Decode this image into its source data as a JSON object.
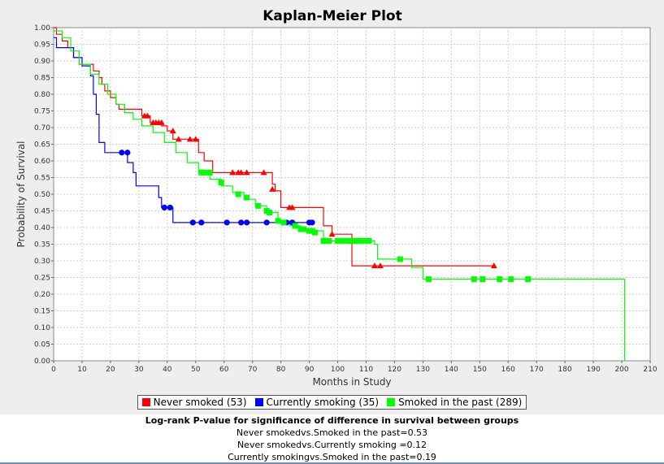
{
  "chart_data": {
    "type": "line",
    "title": "Kaplan-Meier Plot",
    "xlabel": "Months in Study",
    "ylabel": "Probability of Survival",
    "xlim": [
      0,
      210
    ],
    "ylim": [
      0,
      1
    ],
    "xticks": [
      "0",
      "10",
      "20",
      "30",
      "40",
      "50",
      "60",
      "70",
      "80",
      "90",
      "100",
      "110",
      "120",
      "130",
      "140",
      "150",
      "160",
      "170",
      "180",
      "190",
      "200",
      "210"
    ],
    "yticks": [
      "0.00",
      "0.05",
      "0.10",
      "0.15",
      "0.20",
      "0.25",
      "0.30",
      "0.35",
      "0.40",
      "0.45",
      "0.50",
      "0.55",
      "0.60",
      "0.65",
      "0.70",
      "0.75",
      "0.80",
      "0.85",
      "0.90",
      "0.95",
      "1.00"
    ],
    "grid": true,
    "legend_position": "bottom",
    "series": [
      {
        "name": "Never smoked (53)",
        "color": "#ff0000",
        "marker": "triangle",
        "steps": [
          [
            0,
            1.0
          ],
          [
            1,
            0.98
          ],
          [
            3,
            0.96
          ],
          [
            5,
            0.94
          ],
          [
            7,
            0.91
          ],
          [
            9,
            0.89
          ],
          [
            14,
            0.87
          ],
          [
            16,
            0.85
          ],
          [
            17,
            0.83
          ],
          [
            18,
            0.81
          ],
          [
            20,
            0.79
          ],
          [
            22,
            0.77
          ],
          [
            23,
            0.755
          ],
          [
            31,
            0.735
          ],
          [
            34,
            0.715
          ],
          [
            38,
            0.705
          ],
          [
            40,
            0.69
          ],
          [
            42,
            0.665
          ],
          [
            51,
            0.625
          ],
          [
            53,
            0.6
          ],
          [
            56,
            0.565
          ],
          [
            77,
            0.53
          ],
          [
            78,
            0.51
          ],
          [
            80,
            0.46
          ],
          [
            95,
            0.405
          ],
          [
            98,
            0.38
          ],
          [
            105,
            0.285
          ],
          [
            155,
            0.285
          ]
        ],
        "censored": [
          [
            32,
            0.735
          ],
          [
            33,
            0.735
          ],
          [
            35,
            0.715
          ],
          [
            36,
            0.715
          ],
          [
            37,
            0.715
          ],
          [
            38,
            0.715
          ],
          [
            42,
            0.69
          ],
          [
            44,
            0.665
          ],
          [
            48,
            0.665
          ],
          [
            50,
            0.665
          ],
          [
            63,
            0.565
          ],
          [
            65,
            0.565
          ],
          [
            66,
            0.565
          ],
          [
            68,
            0.565
          ],
          [
            74,
            0.565
          ],
          [
            77,
            0.515
          ],
          [
            83,
            0.46
          ],
          [
            84,
            0.46
          ],
          [
            98,
            0.38
          ],
          [
            113,
            0.285
          ],
          [
            115,
            0.285
          ],
          [
            155,
            0.285
          ]
        ]
      },
      {
        "name": "Currently smoking (35)",
        "color": "#0000ff",
        "marker": "circle",
        "steps": [
          [
            0,
            0.97
          ],
          [
            1,
            0.94
          ],
          [
            7,
            0.91
          ],
          [
            10,
            0.885
          ],
          [
            13,
            0.855
          ],
          [
            14,
            0.8
          ],
          [
            15,
            0.74
          ],
          [
            16,
            0.655
          ],
          [
            18,
            0.625
          ],
          [
            26,
            0.595
          ],
          [
            28,
            0.565
          ],
          [
            29,
            0.525
          ],
          [
            37,
            0.49
          ],
          [
            38,
            0.46
          ],
          [
            42,
            0.415
          ],
          [
            91,
            0.415
          ]
        ],
        "censored": [
          [
            24,
            0.625
          ],
          [
            26,
            0.625
          ],
          [
            39,
            0.46
          ],
          [
            41,
            0.46
          ],
          [
            49,
            0.415
          ],
          [
            52,
            0.415
          ],
          [
            61,
            0.415
          ],
          [
            66,
            0.415
          ],
          [
            68,
            0.415
          ],
          [
            75,
            0.415
          ],
          [
            82,
            0.415
          ],
          [
            84,
            0.415
          ],
          [
            90,
            0.415
          ],
          [
            91,
            0.415
          ]
        ]
      },
      {
        "name": "Smoked in the past (289)",
        "color": "#00ff00",
        "marker": "square",
        "steps": [
          [
            0,
            0.99
          ],
          [
            3,
            0.97
          ],
          [
            6,
            0.93
          ],
          [
            9,
            0.89
          ],
          [
            13,
            0.86
          ],
          [
            16,
            0.83
          ],
          [
            19,
            0.8
          ],
          [
            22,
            0.77
          ],
          [
            25,
            0.745
          ],
          [
            28,
            0.725
          ],
          [
            31,
            0.705
          ],
          [
            35,
            0.685
          ],
          [
            39,
            0.655
          ],
          [
            43,
            0.625
          ],
          [
            47,
            0.595
          ],
          [
            51,
            0.565
          ],
          [
            55,
            0.545
          ],
          [
            59,
            0.525
          ],
          [
            63,
            0.505
          ],
          [
            67,
            0.485
          ],
          [
            71,
            0.465
          ],
          [
            75,
            0.445
          ],
          [
            79,
            0.42
          ],
          [
            83,
            0.405
          ],
          [
            87,
            0.39
          ],
          [
            95,
            0.36
          ],
          [
            113,
            0.35
          ],
          [
            114,
            0.305
          ],
          [
            126,
            0.28
          ],
          [
            130,
            0.245
          ],
          [
            201,
            0.245
          ],
          [
            201,
            0.0
          ]
        ],
        "censored": [
          [
            52,
            0.565
          ],
          [
            53,
            0.565
          ],
          [
            55,
            0.565
          ],
          [
            59,
            0.535
          ],
          [
            65,
            0.5
          ],
          [
            68,
            0.49
          ],
          [
            72,
            0.465
          ],
          [
            75,
            0.45
          ],
          [
            76,
            0.445
          ],
          [
            79,
            0.42
          ],
          [
            81,
            0.415
          ],
          [
            85,
            0.405
          ],
          [
            87,
            0.395
          ],
          [
            88,
            0.395
          ],
          [
            90,
            0.39
          ],
          [
            91,
            0.39
          ],
          [
            92,
            0.385
          ],
          [
            95,
            0.36
          ],
          [
            96,
            0.36
          ],
          [
            97,
            0.36
          ],
          [
            100,
            0.36
          ],
          [
            102,
            0.36
          ],
          [
            104,
            0.36
          ],
          [
            105,
            0.36
          ],
          [
            106,
            0.36
          ],
          [
            107,
            0.36
          ],
          [
            109,
            0.36
          ],
          [
            111,
            0.36
          ],
          [
            122,
            0.305
          ],
          [
            132,
            0.245
          ],
          [
            148,
            0.245
          ],
          [
            151,
            0.245
          ],
          [
            157,
            0.245
          ],
          [
            161,
            0.245
          ],
          [
            167,
            0.245
          ]
        ]
      }
    ]
  },
  "stats": {
    "header": "Log-rank P-value for significance of difference in survival between groups",
    "lines": [
      "Never smokedvs.Smoked in the past=0.53",
      "Never smokedvs.Currently smoking =0.12",
      "Currently smokingvs.Smoked in the past=0.19"
    ]
  }
}
